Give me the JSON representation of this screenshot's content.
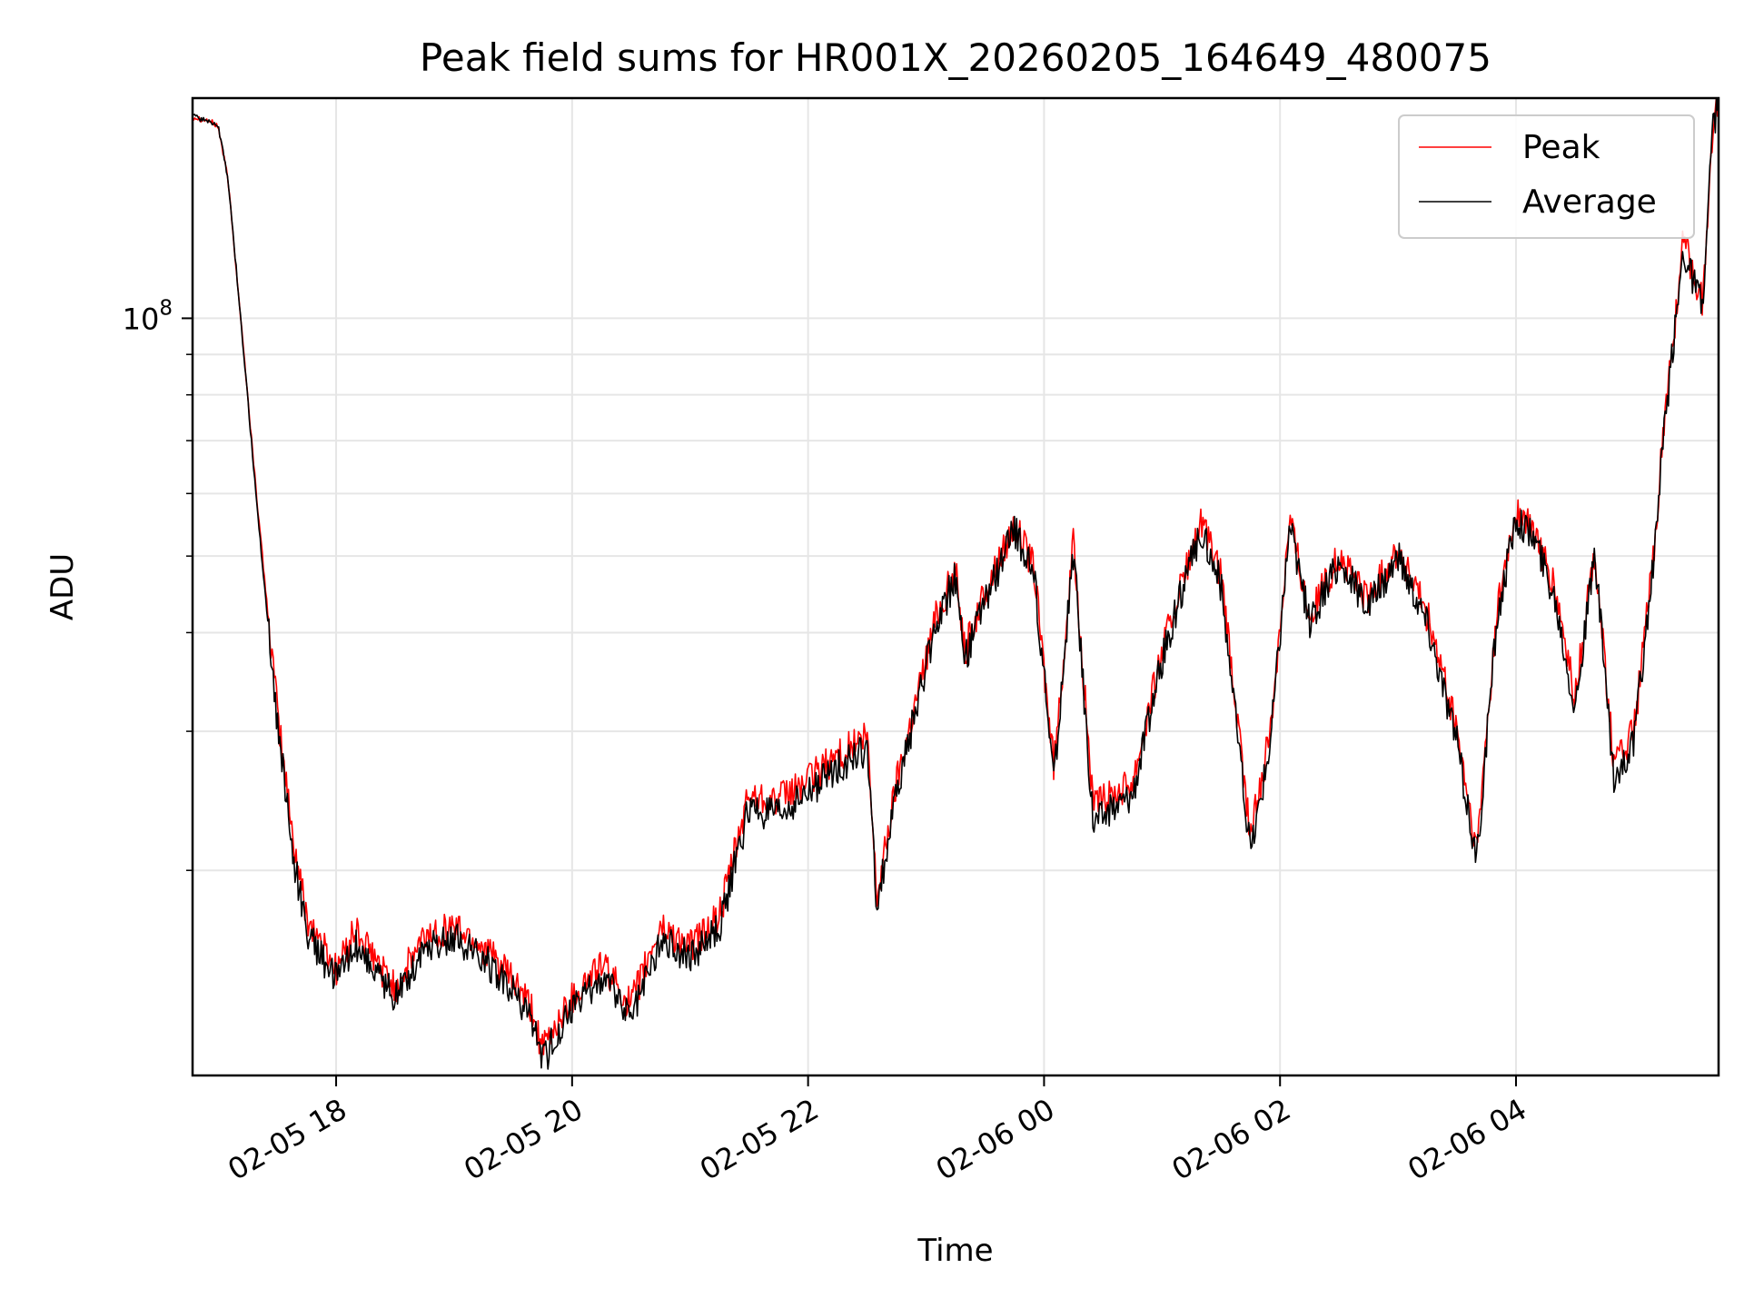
{
  "chart_data": {
    "type": "line",
    "title": "Peak field sums for HR001X_20260205_164649_480075",
    "xlabel": "Time",
    "ylabel": "ADU",
    "yscale": "log",
    "ylim": [
      11000000,
      190000000
    ],
    "xlim": [
      "2026-02-05T16:47",
      "2026-02-06T05:43"
    ],
    "grid": true,
    "legend_position": "top-right",
    "x_ticks": [
      "02-05 18",
      "02-05 20",
      "02-05 22",
      "02-06 00",
      "02-06 02",
      "02-06 04"
    ],
    "y_ticks": [
      "10^8"
    ],
    "series": [
      {
        "name": "Peak",
        "color": "#ff0000",
        "x": [
          "2026-02-05T16:47",
          "2026-02-05T16:55",
          "2026-02-05T17:00",
          "2026-02-05T17:05",
          "2026-02-05T17:10",
          "2026-02-05T17:20",
          "2026-02-05T17:30",
          "2026-02-05T17:38",
          "2026-02-05T17:45",
          "2026-02-05T18:00",
          "2026-02-05T18:10",
          "2026-02-05T18:15",
          "2026-02-05T18:30",
          "2026-02-05T18:45",
          "2026-02-05T19:00",
          "2026-02-05T19:15",
          "2026-02-05T19:30",
          "2026-02-05T19:40",
          "2026-02-05T19:45",
          "2026-02-05T19:50",
          "2026-02-05T20:00",
          "2026-02-05T20:15",
          "2026-02-05T20:30",
          "2026-02-05T20:45",
          "2026-02-05T21:00",
          "2026-02-05T21:15",
          "2026-02-05T21:30",
          "2026-02-05T21:45",
          "2026-02-05T22:00",
          "2026-02-05T22:15",
          "2026-02-05T22:30",
          "2026-02-05T22:35",
          "2026-02-05T22:45",
          "2026-02-05T22:55",
          "2026-02-05T23:05",
          "2026-02-05T23:15",
          "2026-02-05T23:20",
          "2026-02-05T23:30",
          "2026-02-05T23:45",
          "2026-02-05T23:55",
          "2026-02-06T00:05",
          "2026-02-06T00:15",
          "2026-02-06T00:25",
          "2026-02-06T00:45",
          "2026-02-06T01:00",
          "2026-02-06T01:10",
          "2026-02-06T01:20",
          "2026-02-06T01:30",
          "2026-02-06T01:45",
          "2026-02-06T01:55",
          "2026-02-06T02:05",
          "2026-02-06T02:15",
          "2026-02-06T02:30",
          "2026-02-06T02:45",
          "2026-02-06T03:00",
          "2026-02-06T03:15",
          "2026-02-06T03:30",
          "2026-02-06T03:40",
          "2026-02-06T03:50",
          "2026-02-06T04:00",
          "2026-02-06T04:10",
          "2026-02-06T04:20",
          "2026-02-06T04:30",
          "2026-02-06T04:40",
          "2026-02-06T04:50",
          "2026-02-06T05:00",
          "2026-02-06T05:10",
          "2026-02-06T05:15",
          "2026-02-06T05:25",
          "2026-02-06T05:35",
          "2026-02-06T05:40",
          "2026-02-06T05:43"
        ],
        "values": [
          180000000,
          178000000,
          175000000,
          150000000,
          110000000,
          58000000,
          32000000,
          22000000,
          17500000,
          15000000,
          16800000,
          16000000,
          14200000,
          16500000,
          17000000,
          16000000,
          14500000,
          13200000,
          11800000,
          12500000,
          13800000,
          15200000,
          13500000,
          17000000,
          16000000,
          17500000,
          25000000,
          24500000,
          26000000,
          28000000,
          29500000,
          18500000,
          26000000,
          33000000,
          42000000,
          48000000,
          38000000,
          45000000,
          55000000,
          48000000,
          27000000,
          52000000,
          24000000,
          26000000,
          38000000,
          46000000,
          55000000,
          47000000,
          22000000,
          30000000,
          56000000,
          42000000,
          50000000,
          44000000,
          51000000,
          42000000,
          30000000,
          21000000,
          42000000,
          57000000,
          53000000,
          45000000,
          33000000,
          51000000,
          27000000,
          30000000,
          50000000,
          72000000,
          125000000,
          105000000,
          175000000,
          190000000
        ]
      },
      {
        "name": "Average",
        "color": "#000000",
        "x": [
          "2026-02-05T16:47",
          "2026-02-05T16:55",
          "2026-02-05T17:00",
          "2026-02-05T17:05",
          "2026-02-05T17:10",
          "2026-02-05T17:20",
          "2026-02-05T17:30",
          "2026-02-05T17:38",
          "2026-02-05T17:45",
          "2026-02-05T18:00",
          "2026-02-05T18:10",
          "2026-02-05T18:15",
          "2026-02-05T18:30",
          "2026-02-05T18:45",
          "2026-02-05T19:00",
          "2026-02-05T19:15",
          "2026-02-05T19:30",
          "2026-02-05T19:40",
          "2026-02-05T19:45",
          "2026-02-05T19:50",
          "2026-02-05T20:00",
          "2026-02-05T20:15",
          "2026-02-05T20:30",
          "2026-02-05T20:45",
          "2026-02-05T21:00",
          "2026-02-05T21:15",
          "2026-02-05T21:30",
          "2026-02-05T21:45",
          "2026-02-05T22:00",
          "2026-02-05T22:15",
          "2026-02-05T22:30",
          "2026-02-05T22:35",
          "2026-02-05T22:45",
          "2026-02-05T22:55",
          "2026-02-05T23:05",
          "2026-02-05T23:15",
          "2026-02-05T23:20",
          "2026-02-05T23:30",
          "2026-02-05T23:45",
          "2026-02-05T23:55",
          "2026-02-06T00:05",
          "2026-02-06T00:15",
          "2026-02-06T00:25",
          "2026-02-06T00:45",
          "2026-02-06T01:00",
          "2026-02-06T01:10",
          "2026-02-06T01:20",
          "2026-02-06T01:30",
          "2026-02-06T01:45",
          "2026-02-06T01:55",
          "2026-02-06T02:05",
          "2026-02-06T02:15",
          "2026-02-06T02:30",
          "2026-02-06T02:45",
          "2026-02-06T03:00",
          "2026-02-06T03:15",
          "2026-02-06T03:30",
          "2026-02-06T03:40",
          "2026-02-06T03:50",
          "2026-02-06T04:00",
          "2026-02-06T04:10",
          "2026-02-06T04:20",
          "2026-02-06T04:30",
          "2026-02-06T04:40",
          "2026-02-06T04:50",
          "2026-02-06T05:00",
          "2026-02-06T05:10",
          "2026-02-06T05:15",
          "2026-02-06T05:25",
          "2026-02-06T05:35",
          "2026-02-06T05:40",
          "2026-02-06T05:43"
        ],
        "values": [
          180000000,
          178000000,
          175000000,
          150000000,
          110000000,
          57000000,
          31000000,
          21000000,
          16800000,
          14500000,
          16200000,
          15500000,
          13800000,
          16000000,
          16500000,
          15500000,
          14000000,
          12800000,
          11400000,
          12100000,
          13300000,
          14700000,
          13100000,
          16400000,
          15500000,
          16900000,
          24000000,
          23500000,
          25000000,
          27000000,
          28500000,
          18000000,
          25000000,
          32000000,
          41000000,
          47000000,
          37000000,
          44000000,
          54000000,
          47000000,
          26000000,
          51000000,
          23000000,
          25000000,
          37000000,
          45000000,
          54000000,
          46000000,
          21000000,
          29000000,
          55000000,
          41000000,
          49000000,
          43000000,
          50000000,
          41000000,
          29000000,
          20500000,
          41000000,
          56000000,
          52000000,
          44000000,
          32000000,
          50000000,
          26000000,
          29000000,
          49000000,
          70000000,
          122000000,
          103000000,
          172000000,
          190000000
        ]
      }
    ]
  }
}
